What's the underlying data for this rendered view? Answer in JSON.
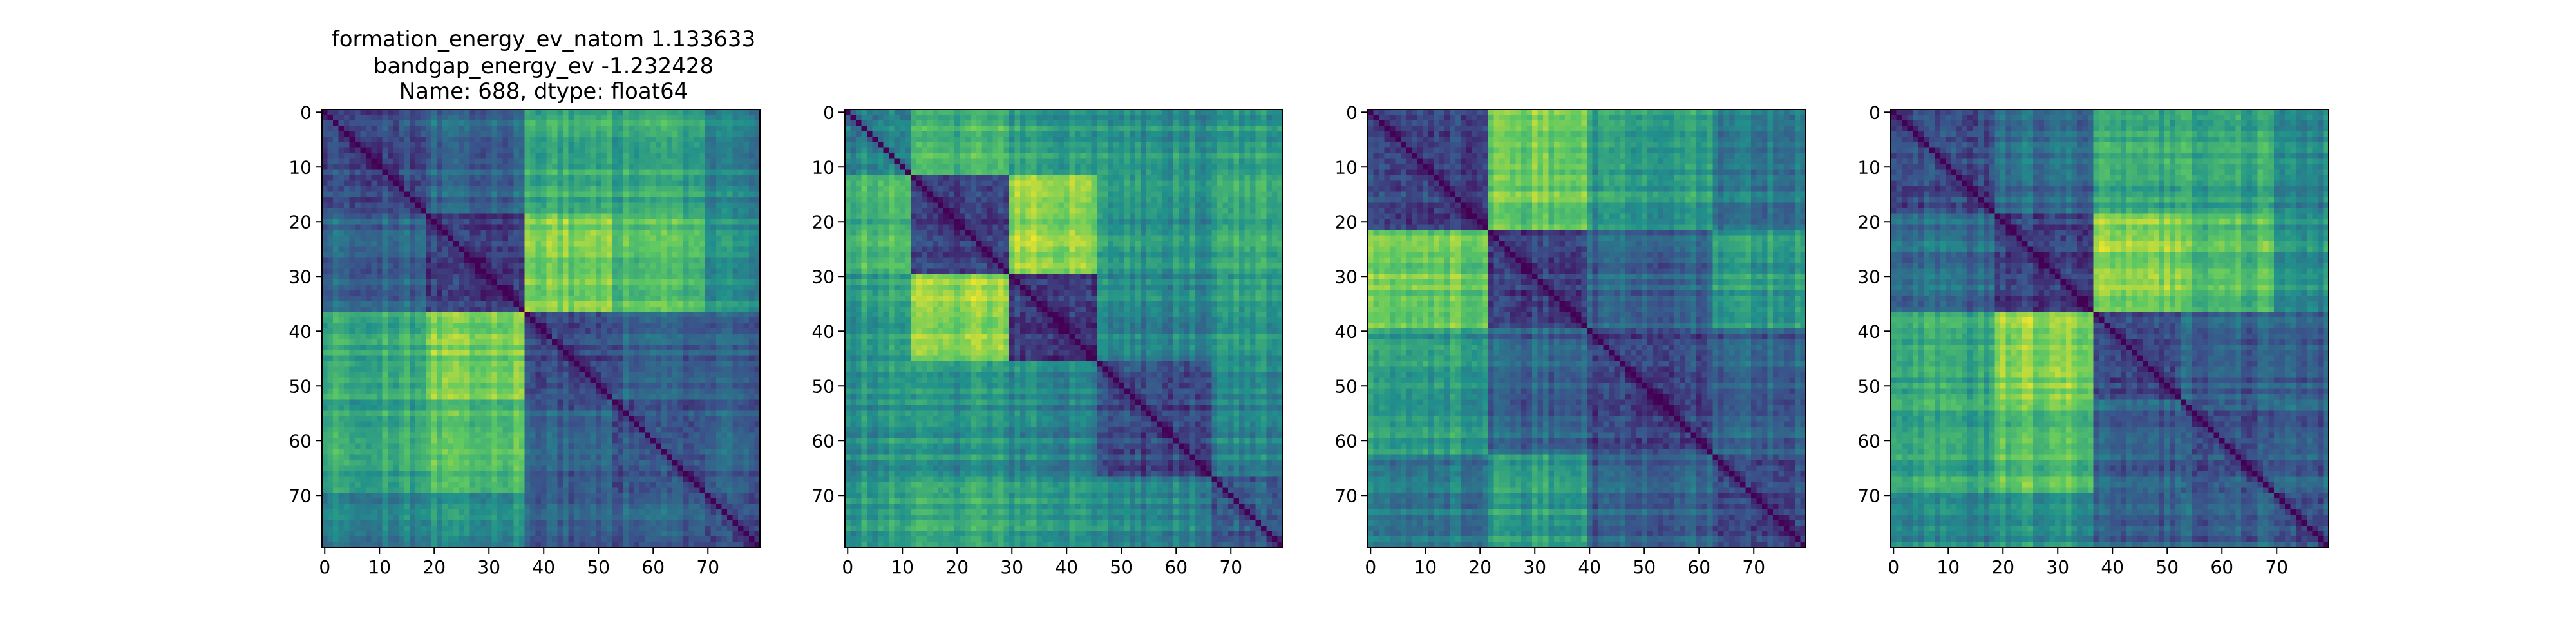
{
  "title_lines": [
    "formation_energy_ev_natom    1.133633",
    "bandgap_energy_ev           -1.232428",
    "Name: 688, dtype: float64"
  ],
  "colormap": "viridis",
  "colormap_stops": [
    "#440154",
    "#3b528b",
    "#21918c",
    "#5ec962",
    "#fde725"
  ],
  "axis_color": "#000000",
  "chart_data": [
    {
      "type": "heatmap",
      "title": "formation_energy_ev_natom    1.133633\nbandgap_energy_ev           -1.232428\nName: 688, dtype: float64",
      "size": 80,
      "x_ticks": [
        0,
        10,
        20,
        30,
        40,
        50,
        60,
        70
      ],
      "y_ticks": [
        0,
        10,
        20,
        30,
        40,
        50,
        60,
        70
      ],
      "xlim": [
        -0.5,
        79.5
      ],
      "ylim": [
        79.5,
        -0.5
      ],
      "blocks": [
        [
          0,
          19,
          0.25
        ],
        [
          19,
          37,
          0.2
        ],
        [
          37,
          53,
          0.22
        ],
        [
          53,
          70,
          0.25
        ],
        [
          70,
          80,
          0.25
        ]
      ],
      "cross_levels": [
        [
          0.0,
          0.35,
          0.62,
          0.6,
          0.45
        ],
        [
          0.35,
          0.0,
          0.8,
          0.7,
          0.5
        ],
        [
          0.62,
          0.8,
          0.0,
          0.3,
          0.3
        ],
        [
          0.6,
          0.7,
          0.3,
          0.0,
          0.3
        ],
        [
          0.45,
          0.5,
          0.3,
          0.3,
          0.0
        ]
      ],
      "grid": false
    },
    {
      "type": "heatmap",
      "title": "",
      "size": 80,
      "x_ticks": [
        0,
        10,
        20,
        30,
        40,
        50,
        60,
        70
      ],
      "y_ticks": [
        0,
        10,
        20,
        30,
        40,
        50,
        60,
        70
      ],
      "xlim": [
        -0.5,
        79.5
      ],
      "ylim": [
        79.5,
        -0.5
      ],
      "blocks": [
        [
          0,
          12,
          0.45
        ],
        [
          12,
          30,
          0.18
        ],
        [
          30,
          46,
          0.18
        ],
        [
          46,
          67,
          0.22
        ],
        [
          67,
          80,
          0.3
        ]
      ],
      "cross_levels": [
        [
          0.0,
          0.65,
          0.55,
          0.5,
          0.55
        ],
        [
          0.65,
          0.0,
          0.82,
          0.5,
          0.6
        ],
        [
          0.55,
          0.82,
          0.0,
          0.45,
          0.55
        ],
        [
          0.5,
          0.5,
          0.45,
          0.0,
          0.45
        ],
        [
          0.55,
          0.6,
          0.55,
          0.45,
          0.0
        ]
      ],
      "grid": false
    },
    {
      "type": "heatmap",
      "title": "",
      "size": 80,
      "x_ticks": [
        0,
        10,
        20,
        30,
        40,
        50,
        60,
        70
      ],
      "y_ticks": [
        0,
        10,
        20,
        30,
        40,
        50,
        60,
        70
      ],
      "xlim": [
        -0.5,
        79.5
      ],
      "ylim": [
        79.5,
        -0.5
      ],
      "blocks": [
        [
          0,
          22,
          0.22
        ],
        [
          22,
          40,
          0.2
        ],
        [
          40,
          63,
          0.2
        ],
        [
          63,
          80,
          0.22
        ]
      ],
      "cross_levels": [
        [
          0.0,
          0.78,
          0.55,
          0.4
        ],
        [
          0.78,
          0.0,
          0.32,
          0.55
        ],
        [
          0.55,
          0.32,
          0.0,
          0.3
        ],
        [
          0.4,
          0.55,
          0.3,
          0.0
        ]
      ],
      "grid": false
    },
    {
      "type": "heatmap",
      "title": "",
      "size": 80,
      "x_ticks": [
        0,
        10,
        20,
        30,
        40,
        50,
        60,
        70
      ],
      "y_ticks": [
        0,
        10,
        20,
        30,
        40,
        50,
        60,
        70
      ],
      "xlim": [
        -0.5,
        79.5
      ],
      "ylim": [
        79.5,
        -0.5
      ],
      "blocks": [
        [
          0,
          19,
          0.22
        ],
        [
          19,
          37,
          0.2
        ],
        [
          37,
          53,
          0.22
        ],
        [
          53,
          70,
          0.25
        ],
        [
          70,
          80,
          0.25
        ]
      ],
      "cross_levels": [
        [
          0.0,
          0.35,
          0.6,
          0.58,
          0.45
        ],
        [
          0.35,
          0.0,
          0.82,
          0.7,
          0.5
        ],
        [
          0.6,
          0.82,
          0.0,
          0.3,
          0.3
        ],
        [
          0.58,
          0.7,
          0.3,
          0.0,
          0.3
        ],
        [
          0.45,
          0.5,
          0.3,
          0.3,
          0.0
        ]
      ],
      "grid": false
    }
  ]
}
